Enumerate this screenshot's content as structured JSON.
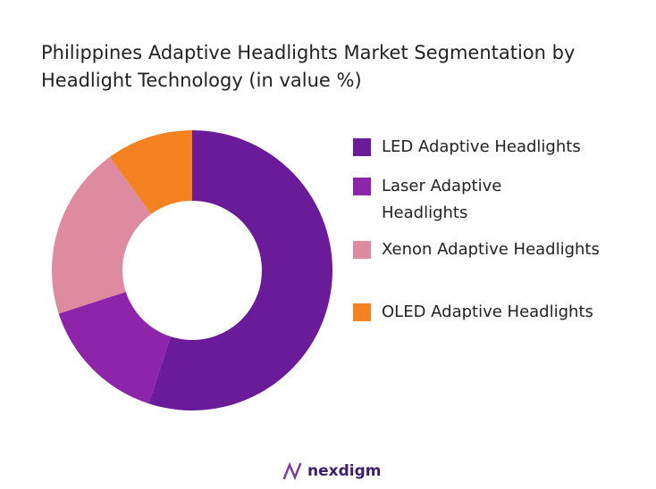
{
  "chart_data": {
    "type": "donut",
    "title": "Philippines Adaptive Headlights Market Segmentation by Headlight Technology (in value %)",
    "categories": [
      "LED Adaptive Headlights",
      "Laser Adaptive Headlights",
      "Xenon Adaptive Headlights",
      "OLED Adaptive Headlights"
    ],
    "values": [
      55,
      15,
      20,
      10
    ],
    "colors": [
      "#6a1b9a",
      "#8e24aa",
      "#de8aa0",
      "#f58220"
    ],
    "legend": "right"
  },
  "brand": "nexdigm"
}
